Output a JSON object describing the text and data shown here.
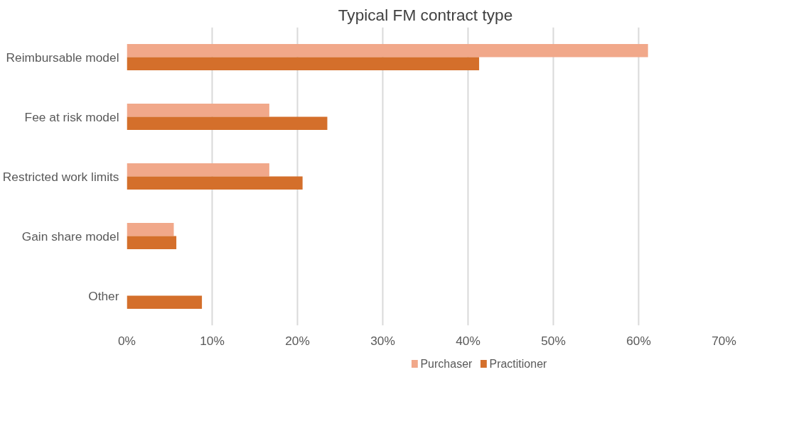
{
  "chart_data": {
    "type": "bar",
    "orientation": "horizontal",
    "title": "Typical FM contract type",
    "categories": [
      "Reimbursable model",
      "Fee at risk model",
      "Restricted work limits",
      "Gain share model",
      "Other"
    ],
    "series": [
      {
        "name": "Purchaser",
        "color": "#f1a88a",
        "values": [
          61.1,
          16.7,
          16.7,
          5.5,
          null
        ]
      },
      {
        "name": "Practitioner",
        "color": "#d46f2b",
        "values": [
          41.3,
          23.5,
          20.6,
          5.8,
          8.8
        ]
      }
    ],
    "xlim": [
      0,
      70
    ],
    "xticks": [
      {
        "value": 0,
        "label": "0%"
      },
      {
        "value": 10,
        "label": "10%"
      },
      {
        "value": 20,
        "label": "20%"
      },
      {
        "value": 30,
        "label": "30%"
      },
      {
        "value": 40,
        "label": "40%"
      },
      {
        "value": 50,
        "label": "50%"
      },
      {
        "value": 60,
        "label": "60%"
      },
      {
        "value": 70,
        "label": "70%"
      }
    ],
    "grid": "x",
    "legend": "bottom"
  }
}
